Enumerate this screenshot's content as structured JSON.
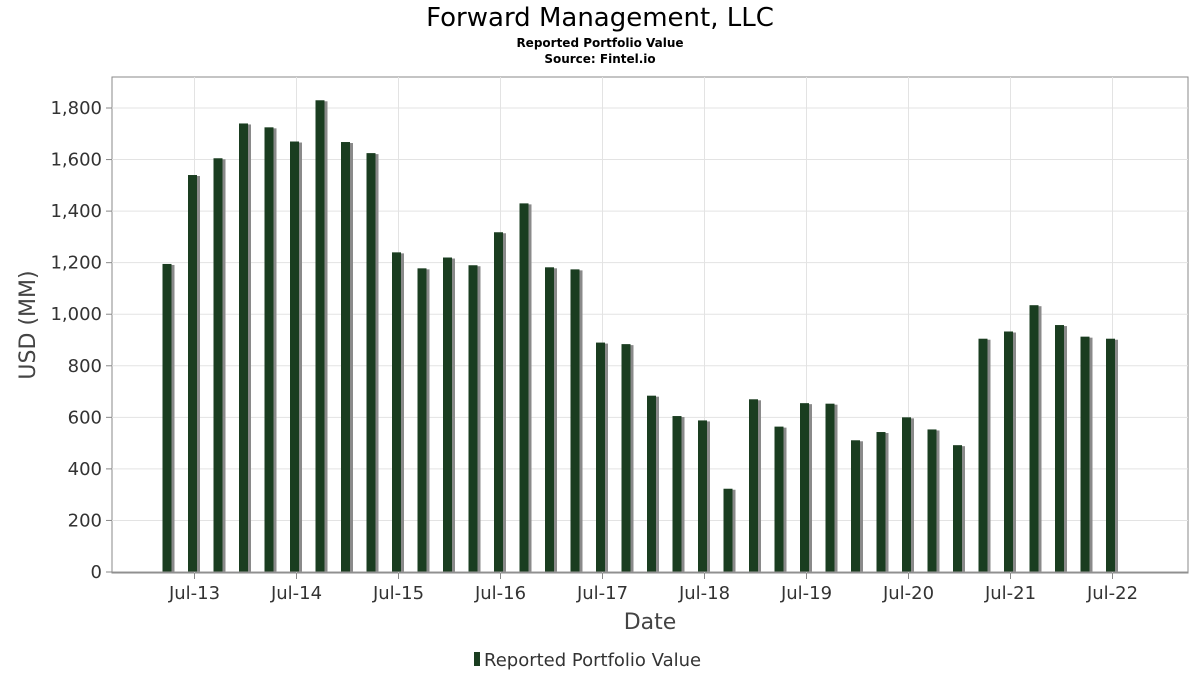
{
  "chart_data": {
    "type": "bar",
    "title": "Forward Management, LLC",
    "subtitle": "Reported Portfolio Value",
    "source": "Source: Fintel.io",
    "xlabel": "Date",
    "ylabel": "USD (MM)",
    "ylim": [
      0,
      1930
    ],
    "yticks": [
      "0",
      "200",
      "400",
      "600",
      "800",
      "1,000",
      "1,200",
      "1,400",
      "1,600",
      "1,800"
    ],
    "ytick_values": [
      0,
      200,
      400,
      600,
      800,
      1000,
      1200,
      1400,
      1600,
      1800
    ],
    "xticks": [
      "Jul-13",
      "Jul-14",
      "Jul-15",
      "Jul-16",
      "Jul-17",
      "Jul-18",
      "Jul-19",
      "Jul-20",
      "Jul-21",
      "Jul-22"
    ],
    "x": [
      "2013-06-30",
      "2013-09-30",
      "2013-12-31",
      "2014-03-31",
      "2014-06-30",
      "2014-09-30",
      "2014-12-31",
      "2015-03-31",
      "2015-06-30",
      "2015-09-30",
      "2015-12-31",
      "2016-03-31",
      "2016-06-30",
      "2016-09-30",
      "2016-12-31",
      "2017-03-31",
      "2017-06-30",
      "2017-09-30",
      "2017-12-31",
      "2018-03-31",
      "2018-06-30",
      "2018-09-30",
      "2018-12-31",
      "2019-03-31",
      "2019-06-30",
      "2019-09-30",
      "2019-12-31",
      "2020-03-31",
      "2020-06-30",
      "2020-09-30",
      "2020-12-31",
      "2021-03-31",
      "2021-06-30",
      "2021-09-30",
      "2021-12-31",
      "2022-03-31",
      "2022-06-30",
      "2022-09-30"
    ],
    "series": [
      {
        "name": "Reported Portfolio Value",
        "values": [
          1195,
          1540,
          1605,
          1740,
          1725,
          1670,
          1830,
          1668,
          1625,
          1240,
          1178,
          1220,
          1190,
          1318,
          1430,
          1182,
          1174,
          890,
          884,
          684,
          605,
          588,
          323,
          670,
          564,
          655,
          653,
          511,
          543,
          600,
          553,
          492,
          905,
          933,
          1035,
          958,
          913,
          905
        ]
      }
    ],
    "grid": true,
    "legend": "bottom-center",
    "colors": {
      "bar": "#1a3d20",
      "shadow": "#8a8a8a",
      "grid": "#e3e3e3",
      "frame": "#888888"
    }
  }
}
